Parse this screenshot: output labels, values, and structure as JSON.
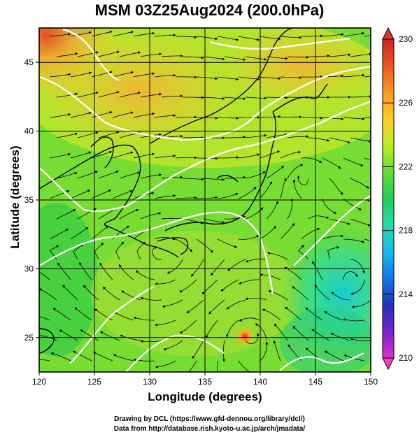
{
  "title": "MSM 03Z25Aug2024 (200.0hPa)",
  "axes": {
    "xlabel": "Longitude (degrees)",
    "ylabel": "Latitude  (degrees)",
    "x_ticks": [
      "120",
      "125",
      "130",
      "135",
      "140",
      "145",
      "150"
    ],
    "y_ticks": [
      "25",
      "30",
      "35",
      "40",
      "45"
    ]
  },
  "colorbar": {
    "ticks": [
      "230",
      "226",
      "222",
      "218",
      "214",
      "210"
    ],
    "min": 210,
    "max": 230,
    "colors": [
      "#dd33cc",
      "#7722cc",
      "#2233bb",
      "#1177ee",
      "#11bbee",
      "#22ddaa",
      "#22cc55",
      "#66dd33",
      "#bbee22",
      "#ffcc22",
      "#ff9922",
      "#ee5522",
      "#cc2222"
    ]
  },
  "credits": {
    "line1": "Drawing by DCL (https://www.gfd-dennou.org/library/dcl/)",
    "line2": "Data from http://database.rish.kyoto-u.ac.jp/arch/jmadata/"
  },
  "field": {
    "variable": "temperature (K) with wind streamlines",
    "extent": {
      "lon": [
        120,
        150
      ],
      "lat": [
        22.5,
        47.5
      ]
    },
    "warm_maximum_region": "northwest corner near 120-123E, 44-47N",
    "cool_region": "southeast near 146-150E, 27-32N",
    "anticyclone_center": [
      144,
      37
    ],
    "typhoon_center": [
      139,
      25.3
    ]
  }
}
